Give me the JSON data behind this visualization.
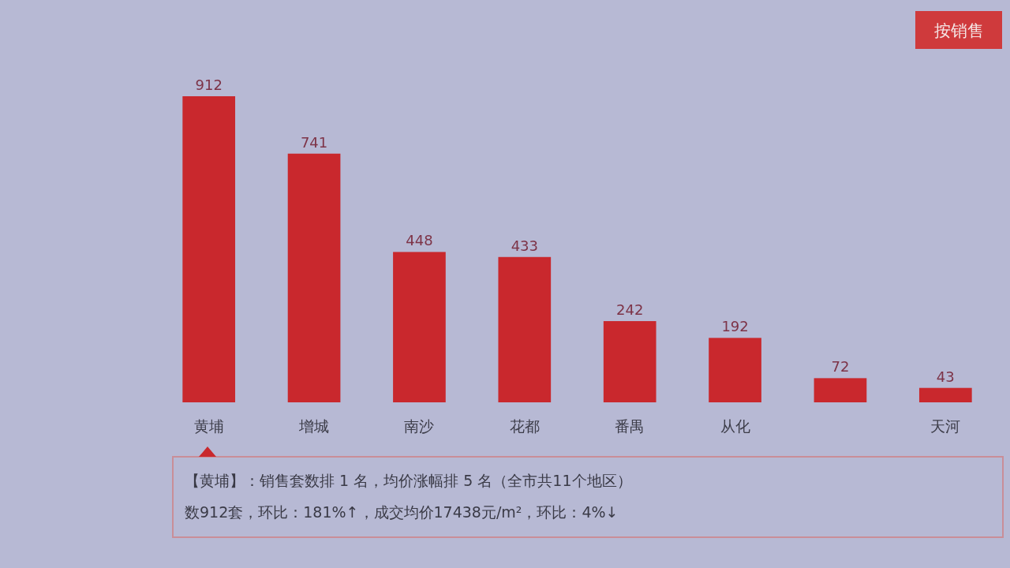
{
  "chart_data": {
    "type": "bar",
    "categories": [
      "黄埔",
      "增城",
      "南沙",
      "花都",
      "番禺",
      "从化",
      null,
      "天河"
    ],
    "values": [
      912,
      741,
      448,
      433,
      242,
      192,
      72,
      43
    ],
    "color": "#c9282d",
    "data_labels": true,
    "annotations": [
      "按销售",
      "【黄埔】：销售套数排 1 名，均价涨幅排 5 名（全市共11个地区）",
      "数912套，环比：181%↑，成交均价17438元/m²，环比：4%↓"
    ]
  }
}
